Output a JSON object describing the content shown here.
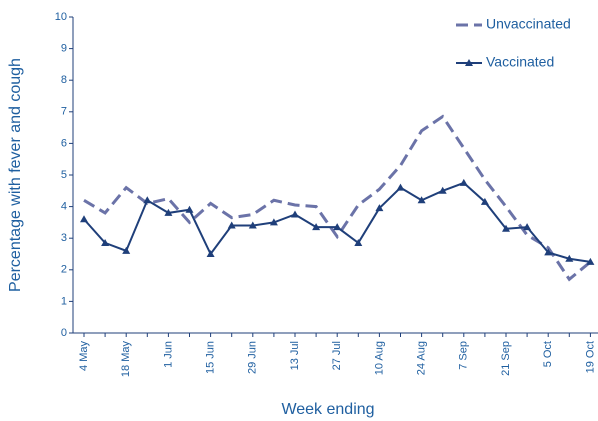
{
  "chart_data": {
    "type": "line",
    "x_label": "Week ending",
    "y_label": "Percentage with fever and cough",
    "categories": [
      "4 May",
      null,
      "18 May",
      null,
      "1 Jun",
      null,
      "15 Jun",
      null,
      "29 Jun",
      null,
      "13 Jul",
      null,
      "27 Jul",
      null,
      "10 Aug",
      null,
      "24 Aug",
      null,
      "7 Sep",
      null,
      "21 Sep",
      null,
      "5 Oct",
      null,
      "19 Oct"
    ],
    "series": [
      {
        "name": "Unvaccinated",
        "color": "#6b73a8",
        "dashed": true,
        "values": [
          4.2,
          3.8,
          4.6,
          4.1,
          4.25,
          3.5,
          4.1,
          3.65,
          3.75,
          4.2,
          4.05,
          4.0,
          3.05,
          4.05,
          4.55,
          5.3,
          6.4,
          6.85,
          5.85,
          4.85,
          4.0,
          3.1,
          2.7,
          1.7,
          2.25
        ]
      },
      {
        "name": "Vaccinated",
        "color": "#1f3f7a",
        "marker": "triangle",
        "values": [
          3.6,
          2.85,
          2.6,
          4.2,
          3.8,
          3.9,
          2.5,
          3.4,
          3.4,
          3.5,
          3.75,
          3.35,
          3.35,
          2.85,
          3.95,
          4.6,
          4.2,
          4.5,
          4.75,
          4.15,
          3.3,
          3.35,
          2.55,
          2.35,
          2.25
        ]
      }
    ],
    "ylim": [
      0,
      10
    ],
    "yticks": [
      0,
      1,
      2,
      3,
      4,
      5,
      6,
      7,
      8,
      9,
      10
    ],
    "legend": "top-right"
  }
}
